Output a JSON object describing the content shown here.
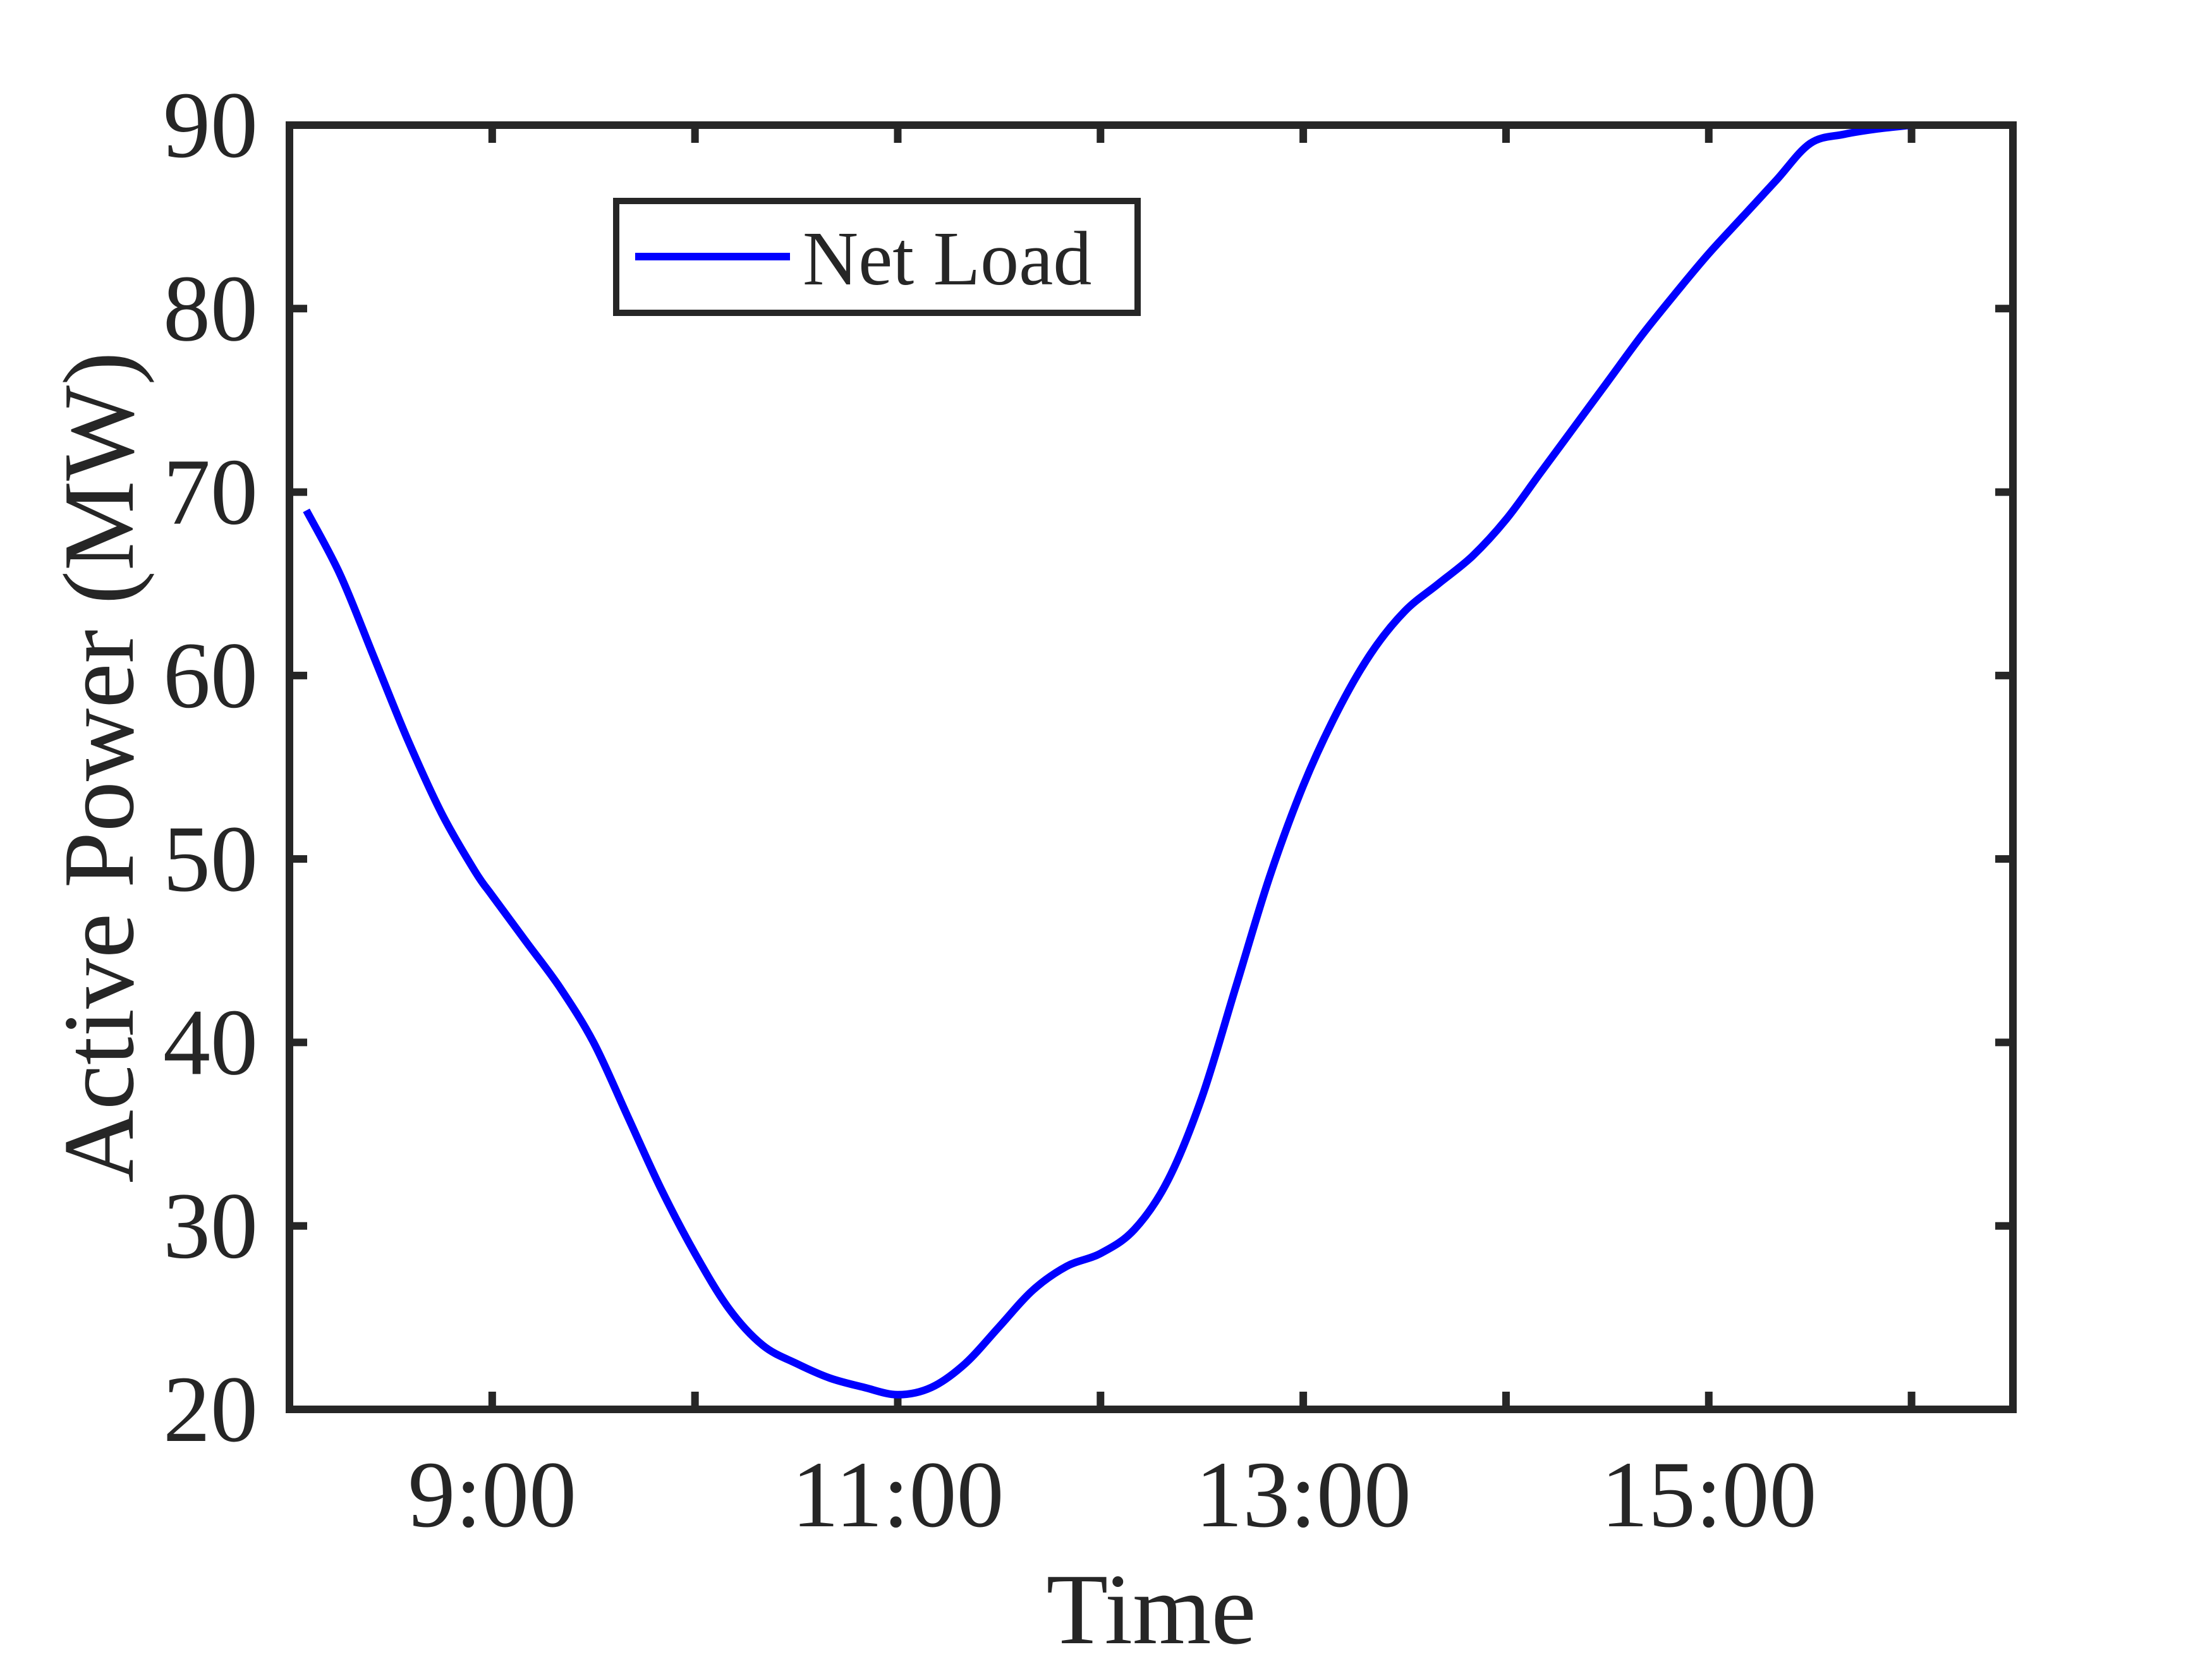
{
  "chart_data": {
    "type": "line",
    "title": "",
    "xlabel": "Time",
    "ylabel": "Active Power (MW)",
    "xlim": [
      "8:00",
      "16:30"
    ],
    "ylim": [
      20,
      90
    ],
    "x_ticks": [
      "8:00",
      "9:00",
      "10:00",
      "11:00",
      "12:00",
      "13:00",
      "14:00",
      "15:00",
      "16:00"
    ],
    "x_tick_labels": [
      "9:00",
      "11:00",
      "13:00",
      "15:00"
    ],
    "y_ticks": [
      20,
      30,
      40,
      50,
      60,
      70,
      80,
      90
    ],
    "grid": false,
    "legend": {
      "position": "top-left",
      "entries": [
        "Net Load"
      ]
    },
    "series": [
      {
        "name": "Net Load",
        "color": "#0000ff",
        "x": [
          "8:05",
          "8:15",
          "8:25",
          "8:35",
          "8:45",
          "8:55",
          "9:00",
          "9:10",
          "9:20",
          "9:30",
          "9:40",
          "9:50",
          "10:00",
          "10:10",
          "10:20",
          "10:30",
          "10:40",
          "10:50",
          "11:00",
          "11:10",
          "11:20",
          "11:30",
          "11:40",
          "11:50",
          "12:00",
          "12:10",
          "12:20",
          "12:30",
          "12:40",
          "12:50",
          "13:00",
          "13:10",
          "13:20",
          "13:30",
          "13:40",
          "13:50",
          "14:00",
          "14:10",
          "14:20",
          "14:30",
          "14:40",
          "14:50",
          "15:00",
          "15:10",
          "15:20",
          "15:30",
          "15:40",
          "15:50",
          "16:00"
        ],
        "values": [
          69,
          65.5,
          61,
          56.5,
          52.5,
          49.3,
          48,
          45.5,
          43,
          40,
          36,
          32,
          28.5,
          25.5,
          23.5,
          22.5,
          21.7,
          21.2,
          20.8,
          21.2,
          22.5,
          24.5,
          26.5,
          27.8,
          28.5,
          29.8,
          32.5,
          37,
          43,
          49,
          54,
          58,
          61.2,
          63.5,
          65,
          66.5,
          68.5,
          71,
          73.5,
          76,
          78.5,
          80.8,
          83,
          85,
          87,
          89,
          89.5,
          89.8,
          90
        ]
      }
    ]
  }
}
